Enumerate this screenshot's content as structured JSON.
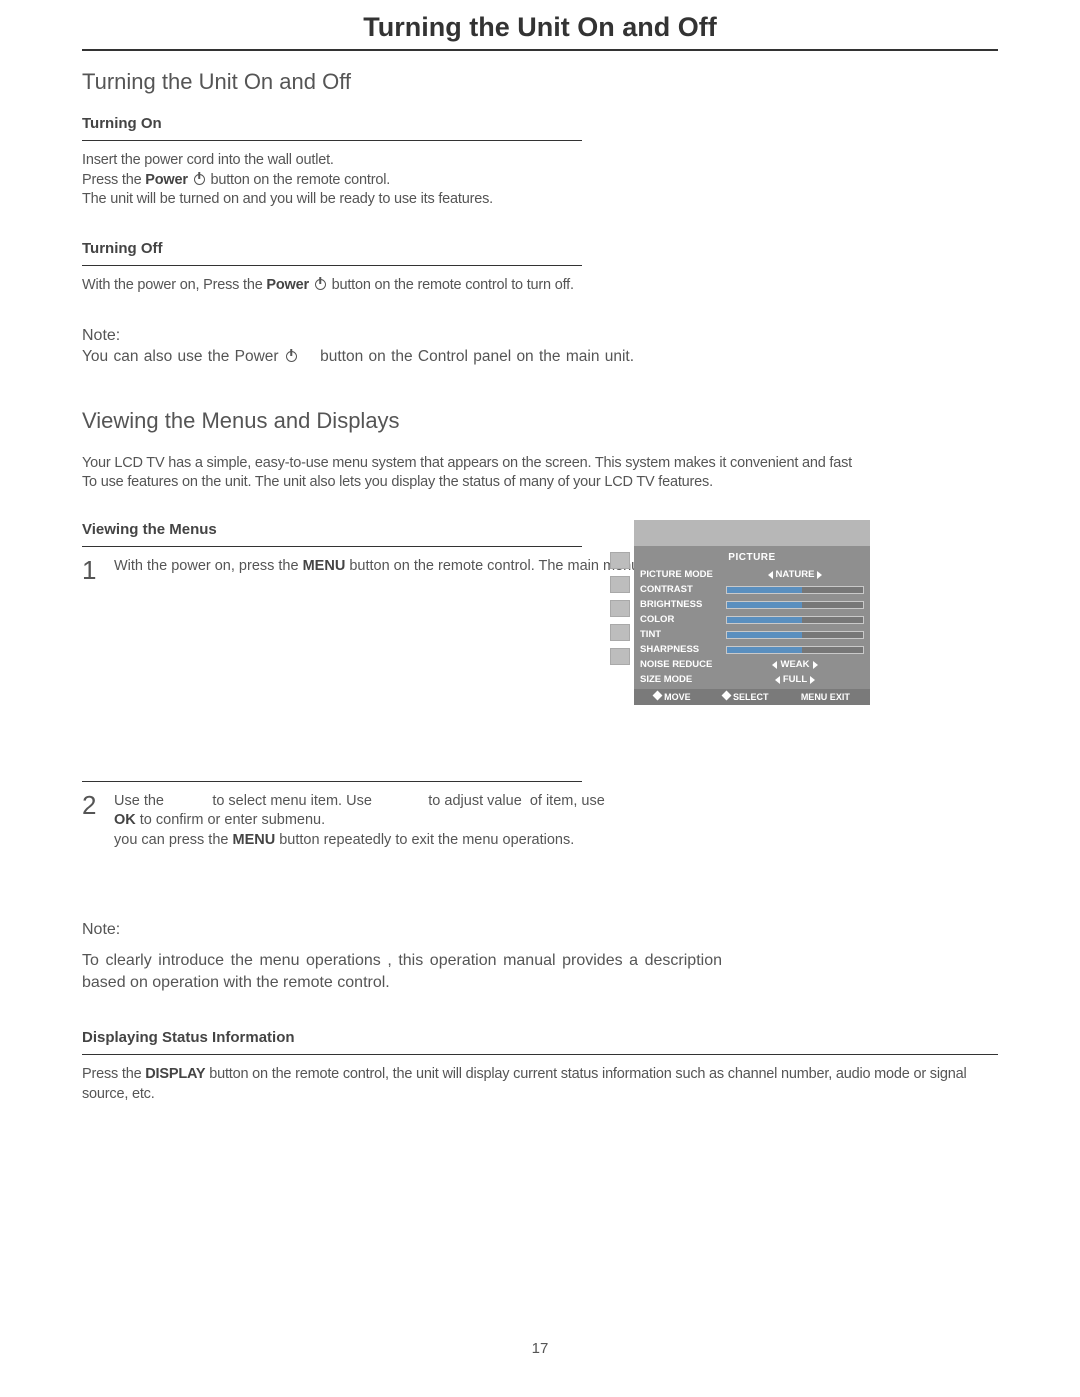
{
  "page": {
    "title": "Turning the Unit On and Off",
    "number": "17"
  },
  "section1": {
    "title": "Turning the Unit On and Off",
    "on": {
      "heading": "Turning On",
      "line1": "Insert the power cord into the wall outlet.",
      "line2a": "Press the ",
      "line2b": "Power",
      "line2c": " button on the remote control.",
      "line3": "The unit will be turned on and you will be ready to use its features."
    },
    "off": {
      "heading": "Turning Off",
      "line1a": "With the power on, Press the ",
      "line1b": "Power",
      "line1c": " button on the remote control to turn off."
    },
    "note": {
      "label": "Note:",
      "line_a": "You can also use the ",
      "line_b": "Power",
      "line_c": " button on the Control panel on the main unit."
    }
  },
  "section2": {
    "title": "Viewing the Menus and Displays",
    "intro1": "Your LCD TV has a simple, easy-to-use menu system that appears on the screen. This system makes it convenient and fast",
    "intro2": "To use features on the unit. The unit also lets you display the status of many of your LCD TV features.",
    "viewing": {
      "heading": "Viewing the Menus",
      "step1_num": "1",
      "step1_a": "With the power on, press the ",
      "step1_b": "MENU",
      "step1_c": " button on the remote control. The main menu appears on the screen.",
      "step2_num": "2",
      "step2_a": "Use the            to select menu item. Use              to adjust value  of item, use ",
      "step2_b": "OK",
      "step2_c": " to confirm or enter submenu.",
      "step2_d": "you can press the ",
      "step2_e": "MENU",
      "step2_f": " button repeatedly to exit the menu operations."
    },
    "note2": {
      "label": "Note:",
      "body": "To clearly introduce the menu operations , this operation manual provides a description based on operation with the remote control."
    },
    "status": {
      "heading": "Displaying Status Information",
      "body_a": "Press the ",
      "body_b": "DISPLAY",
      "body_c": " button on the remote control, the unit will display current status information such as channel number, audio mode or signal source, etc."
    }
  },
  "osd": {
    "title": "PICTURE",
    "rows": [
      {
        "label": "PICTURE MODE",
        "type": "choice",
        "value": "NATURE"
      },
      {
        "label": "CONTRAST",
        "type": "slider",
        "fill": 0.55
      },
      {
        "label": "BRIGHTNESS",
        "type": "slider",
        "fill": 0.55
      },
      {
        "label": "COLOR",
        "type": "slider",
        "fill": 0.55
      },
      {
        "label": "TINT",
        "type": "slider",
        "fill": 0.55
      },
      {
        "label": "SHARPNESS",
        "type": "slider",
        "fill": 0.55
      },
      {
        "label": "NOISE REDUCE",
        "type": "choice",
        "value": "WEAK"
      },
      {
        "label": "SIZE MODE",
        "type": "choice",
        "value": "FULL"
      }
    ],
    "footer": {
      "move": "MOVE",
      "select": "SELECT",
      "exit": "MENU  EXIT"
    },
    "colors": {
      "top_bar": "#b7b7b7",
      "body": "#8f8f8f",
      "footer": "#7a7a7a",
      "slider_fill": "#5a8fbf",
      "text": "#ffffff"
    }
  }
}
